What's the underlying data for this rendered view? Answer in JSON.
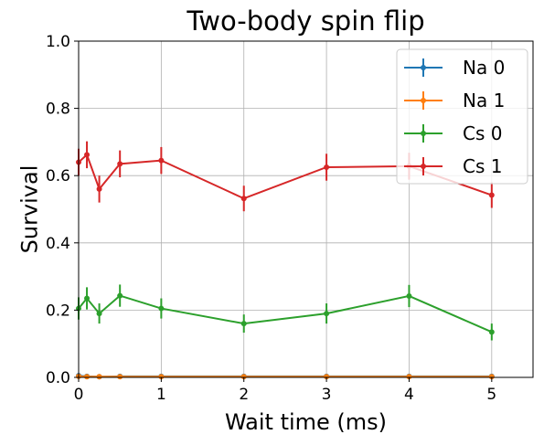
{
  "chart_data": {
    "type": "line",
    "title": "Two-body spin flip",
    "xlabel": "Wait time (ms)",
    "ylabel": "Survival",
    "xlim": [
      0,
      5.5
    ],
    "ylim": [
      0,
      1.0
    ],
    "xticks": [
      0,
      1,
      2,
      3,
      4,
      5
    ],
    "xtick_labels": [
      "0",
      "1",
      "2",
      "3",
      "4",
      "5"
    ],
    "yticks": [
      0,
      0.2,
      0.4,
      0.6,
      0.8,
      1.0
    ],
    "ytick_labels": [
      "0.0",
      "0.2",
      "0.4",
      "0.6",
      "0.8",
      "1.0"
    ],
    "grid": true,
    "legend_position": "top-right",
    "x": [
      0,
      0.1,
      0.25,
      0.5,
      1,
      2,
      3,
      4,
      5
    ],
    "series": [
      {
        "name": "Na 0",
        "color": "#1f77b4",
        "values": [
          0.005,
          0.003,
          0.002,
          0.003,
          0.003,
          0.003,
          0.003,
          0.003,
          0.003
        ],
        "errors": [
          0.003,
          0.003,
          0.002,
          0.003,
          0.003,
          0.003,
          0.003,
          0.003,
          0.003
        ]
      },
      {
        "name": "Na 1",
        "color": "#ff7f0e",
        "values": [
          0.003,
          0.002,
          0.002,
          0.002,
          0.002,
          0.002,
          0.002,
          0.002,
          0.002
        ],
        "errors": [
          0.002,
          0.002,
          0.002,
          0.002,
          0.002,
          0.002,
          0.002,
          0.002,
          0.002
        ]
      },
      {
        "name": "Cs 0",
        "color": "#2ca02c",
        "values": [
          0.205,
          0.235,
          0.19,
          0.243,
          0.205,
          0.16,
          0.19,
          0.242,
          0.135
        ],
        "errors": [
          0.033,
          0.033,
          0.03,
          0.033,
          0.03,
          0.027,
          0.03,
          0.033,
          0.025
        ]
      },
      {
        "name": "Cs 1",
        "color": "#d62728",
        "values": [
          0.64,
          0.662,
          0.56,
          0.635,
          0.645,
          0.532,
          0.625,
          0.628,
          0.542
        ],
        "errors": [
          0.04,
          0.04,
          0.04,
          0.04,
          0.04,
          0.038,
          0.04,
          0.04,
          0.038
        ]
      }
    ]
  }
}
